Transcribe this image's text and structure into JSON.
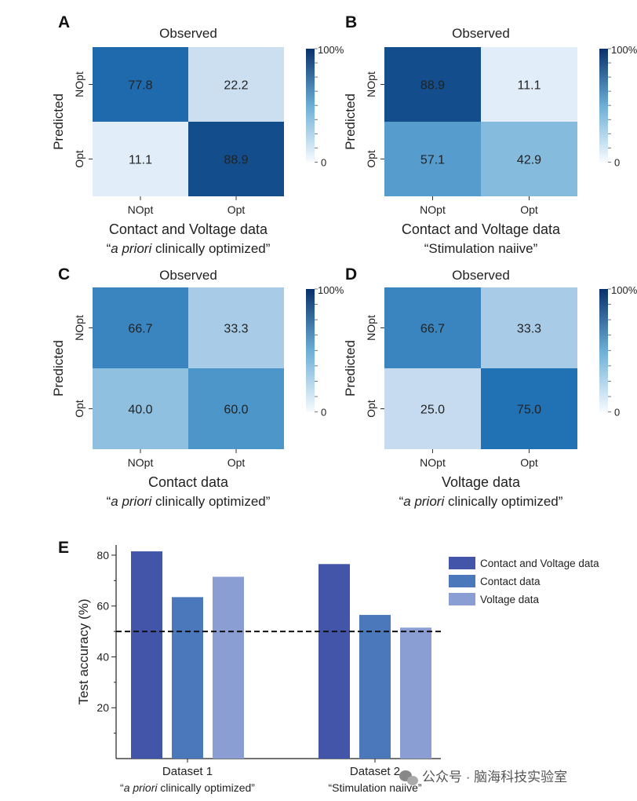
{
  "chart_data": [
    {
      "type": "heatmap",
      "panel": "A",
      "title": "Observed",
      "ylabel": "Predicted",
      "x_categories": [
        "NOpt",
        "Opt"
      ],
      "y_categories": [
        "NOpt",
        "Opt"
      ],
      "values": [
        [
          77.8,
          22.2
        ],
        [
          11.1,
          88.9
        ]
      ],
      "value_labels": [
        [
          "77.8",
          "22.2"
        ],
        [
          "11.1",
          "88.9"
        ]
      ],
      "colorbar": {
        "max_label": "100%",
        "min_label": "0",
        "range": [
          0,
          100
        ]
      },
      "caption_line1": "Contact and Voltage data",
      "caption_line2": {
        "open": "“",
        "italic": "a priori",
        "rest": " clinically optimized”"
      }
    },
    {
      "type": "heatmap",
      "panel": "B",
      "title": "Observed",
      "ylabel": "Predicted",
      "x_categories": [
        "NOpt",
        "Opt"
      ],
      "y_categories": [
        "NOpt",
        "Opt"
      ],
      "values": [
        [
          88.9,
          11.1
        ],
        [
          57.1,
          42.9
        ]
      ],
      "value_labels": [
        [
          "88.9",
          "11.1"
        ],
        [
          "57.1",
          "42.9"
        ]
      ],
      "colorbar": {
        "max_label": "100%",
        "min_label": "0",
        "range": [
          0,
          100
        ]
      },
      "caption_line1": "Contact and Voltage data",
      "caption_line2": {
        "open": "",
        "italic": "",
        "rest": "“Stimulation naiive”"
      }
    },
    {
      "type": "heatmap",
      "panel": "C",
      "title": "Observed",
      "ylabel": "Predicted",
      "x_categories": [
        "NOpt",
        "Opt"
      ],
      "y_categories": [
        "NOpt",
        "Opt"
      ],
      "values": [
        [
          66.7,
          33.3
        ],
        [
          40.0,
          60.0
        ]
      ],
      "value_labels": [
        [
          "66.7",
          "33.3"
        ],
        [
          "40.0",
          "60.0"
        ]
      ],
      "colorbar": {
        "max_label": "100%",
        "min_label": "0",
        "range": [
          0,
          100
        ]
      },
      "caption_line1": "Contact data",
      "caption_line2": {
        "open": "“",
        "italic": "a priori",
        "rest": " clinically optimized”"
      }
    },
    {
      "type": "heatmap",
      "panel": "D",
      "title": "Observed",
      "ylabel": "Predicted",
      "x_categories": [
        "NOpt",
        "Opt"
      ],
      "y_categories": [
        "NOpt",
        "Opt"
      ],
      "values": [
        [
          66.7,
          33.3
        ],
        [
          25.0,
          75.0
        ]
      ],
      "value_labels": [
        [
          "66.7",
          "33.3"
        ],
        [
          "25.0",
          "75.0"
        ]
      ],
      "colorbar": {
        "max_label": "100%",
        "min_label": "0",
        "range": [
          0,
          100
        ]
      },
      "caption_line1": "Voltage data",
      "caption_line2": {
        "open": "“",
        "italic": "a priori",
        "rest": " clinically optimized”"
      }
    },
    {
      "type": "bar",
      "panel": "E",
      "ylabel": "Test accuracy (%)",
      "ylim": [
        0,
        84
      ],
      "yticks": [
        20,
        40,
        60,
        80
      ],
      "yticks_minor": [
        10,
        30,
        50,
        70
      ],
      "reference_line": 50,
      "categories": [
        {
          "name": "Dataset 1",
          "sub_open": "“",
          "sub_italic": "a priori",
          "sub_rest": " clinically optimized”"
        },
        {
          "name": "Dataset 2",
          "sub_open": "",
          "sub_italic": "",
          "sub_rest": "“Stimulation naiive”"
        }
      ],
      "series": [
        {
          "name": "Contact and Voltage data",
          "color": "#4355a8",
          "values": [
            81.5,
            76.5
          ]
        },
        {
          "name": "Contact data",
          "color": "#4a78bb",
          "values": [
            63.5,
            56.5
          ]
        },
        {
          "name": "Voltage data",
          "color": "#8b9ed3",
          "values": [
            71.5,
            51.5
          ]
        }
      ]
    }
  ],
  "watermark": "公众号 · 脑海科技实验室",
  "colors": {
    "heat_low": "#f7fbff",
    "heat_mid": "#6baed6",
    "heat_high": "#08306b",
    "reference_line": "#111111"
  }
}
